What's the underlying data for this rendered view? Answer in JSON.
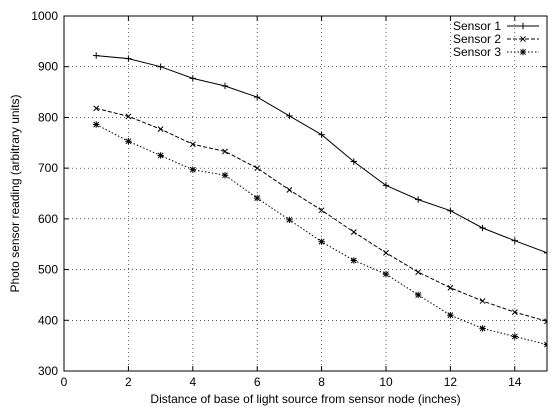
{
  "chart_data": {
    "type": "line",
    "xlabel": "Distance of  base of light source from sensor node (inches)",
    "ylabel": "Photo sensor reading (arbitrary units)",
    "xlim": [
      0,
      15
    ],
    "ylim": [
      300,
      1000
    ],
    "xticks": [
      0,
      2,
      4,
      6,
      8,
      10,
      12,
      14
    ],
    "yticks": [
      300,
      400,
      500,
      600,
      700,
      800,
      900,
      1000
    ],
    "grid": true,
    "legend_position": "top-right",
    "series": [
      {
        "name": "Sensor 1",
        "line_style": "solid",
        "marker": "plus",
        "x": [
          1,
          2,
          3,
          4,
          5,
          6,
          7,
          8,
          9,
          10,
          11,
          12,
          13,
          14,
          15
        ],
        "y": [
          922,
          916,
          900,
          877,
          862,
          840,
          803,
          766,
          713,
          666,
          638,
          616,
          582,
          557,
          533
        ]
      },
      {
        "name": "Sensor 2",
        "line_style": "dashed",
        "marker": "cross",
        "x": [
          1,
          2,
          3,
          4,
          5,
          6,
          7,
          8,
          9,
          10,
          11,
          12,
          13,
          14,
          15
        ],
        "y": [
          818,
          802,
          777,
          747,
          733,
          700,
          657,
          617,
          574,
          533,
          495,
          464,
          438,
          416,
          398
        ]
      },
      {
        "name": "Sensor 3",
        "line_style": "dotted",
        "marker": "star",
        "x": [
          1,
          2,
          3,
          4,
          5,
          6,
          7,
          8,
          9,
          10,
          11,
          12,
          13,
          14,
          15
        ],
        "y": [
          786,
          753,
          725,
          697,
          686,
          641,
          598,
          555,
          518,
          491,
          450,
          410,
          384,
          368,
          352
        ]
      }
    ]
  }
}
